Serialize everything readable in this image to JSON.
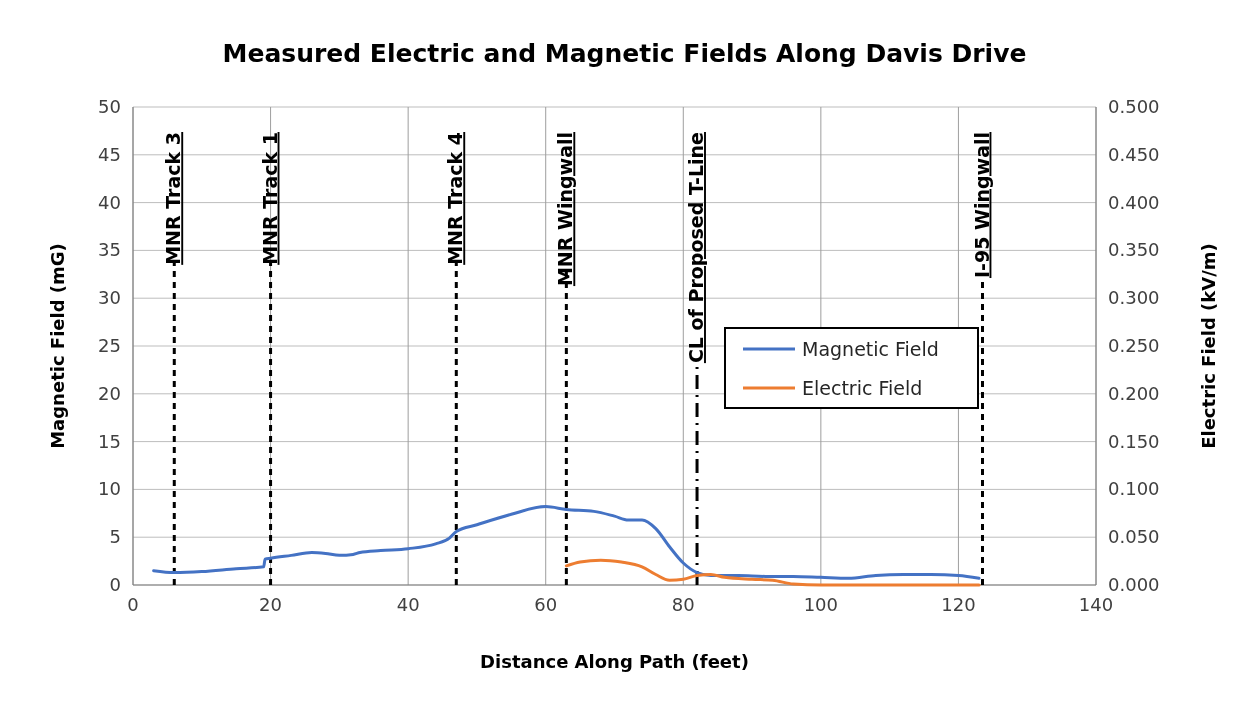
{
  "chart_data": {
    "type": "line",
    "title": "Measured Electric and Magnetic Fields Along Davis Drive",
    "xlabel": "Distance Along Path (feet)",
    "ylabel": "Magnetic Field (mG)",
    "y2label": "Electric Field (kV/m)",
    "xlim": [
      0,
      140
    ],
    "xticks": [
      0,
      20,
      40,
      60,
      80,
      100,
      120,
      140
    ],
    "ylim": [
      0,
      50
    ],
    "yticks": [
      0,
      5,
      10,
      15,
      20,
      25,
      30,
      35,
      40,
      45,
      50
    ],
    "y2lim": [
      0,
      0.5
    ],
    "y2ticks": [
      {
        "value": 0,
        "label": "0.000"
      },
      {
        "value": 0.05,
        "label": "0.050"
      },
      {
        "value": 0.1,
        "label": "0.100"
      },
      {
        "value": 0.15,
        "label": "0.150"
      },
      {
        "value": 0.2,
        "label": "0.200"
      },
      {
        "value": 0.25,
        "label": "0.250"
      },
      {
        "value": 0.3,
        "label": "0.300"
      },
      {
        "value": 0.35,
        "label": "0.350"
      },
      {
        "value": 0.4,
        "label": "0.400"
      },
      {
        "value": 0.45,
        "label": "0.450"
      },
      {
        "value": 0.5,
        "label": "0.500"
      }
    ],
    "grid": true,
    "legend": "right",
    "series": [
      {
        "name": "Magnetic Field",
        "color": "#4472c4",
        "x": [
          3,
          6,
          10,
          15,
          19,
          19.2,
          20,
          23,
          26,
          28,
          30,
          32,
          33,
          36,
          40,
          44,
          46,
          47,
          50,
          55,
          60,
          63,
          67,
          70,
          72,
          74,
          76,
          78,
          80,
          82,
          84,
          88,
          92,
          96,
          100,
          104,
          108,
          112,
          116,
          120,
          123
        ],
        "values": [
          1.5,
          1.3,
          1.4,
          1.7,
          1.9,
          2.7,
          2.8,
          3.1,
          3.4,
          3.3,
          3.1,
          3.2,
          3.4,
          3.6,
          3.8,
          4.3,
          4.9,
          5.6,
          6.3,
          7.4,
          8.2,
          7.9,
          7.7,
          7.2,
          6.8,
          6.8,
          5.9,
          4.0,
          2.3,
          1.3,
          1.0,
          1.0,
          0.9,
          0.9,
          0.8,
          0.7,
          1.0,
          1.1,
          1.1,
          1.0,
          0.7
        ]
      },
      {
        "name": "Electric Field",
        "color": "#ed7d31",
        "axis": "y2",
        "x": [
          63,
          65,
          68,
          71,
          74,
          76,
          78,
          80,
          82,
          84,
          86,
          90,
          93,
          96,
          100,
          110,
          123
        ],
        "values": [
          0.02,
          0.024,
          0.026,
          0.024,
          0.019,
          0.011,
          0.005,
          0.006,
          0.01,
          0.011,
          0.008,
          0.006,
          0.005,
          0.001,
          0,
          0,
          0
        ]
      }
    ],
    "ref_lines": [
      {
        "axis": "x",
        "value": 6,
        "label": "MNR Track 3",
        "line_style": "dashed"
      },
      {
        "axis": "x",
        "value": 20,
        "label": "MNR Track 1",
        "line_style": "dashed"
      },
      {
        "axis": "x",
        "value": 47,
        "label": "MNR Track 4",
        "line_style": "dashed"
      },
      {
        "axis": "x",
        "value": 63,
        "label": "MNR Wingwall",
        "line_style": "dashed"
      },
      {
        "axis": "x",
        "value": 82,
        "label": "CL of Proposed T-Line",
        "line_style": "dashdot"
      },
      {
        "axis": "x",
        "value": 123.5,
        "label": "I-95 Wingwall",
        "line_style": "dashed"
      }
    ]
  }
}
